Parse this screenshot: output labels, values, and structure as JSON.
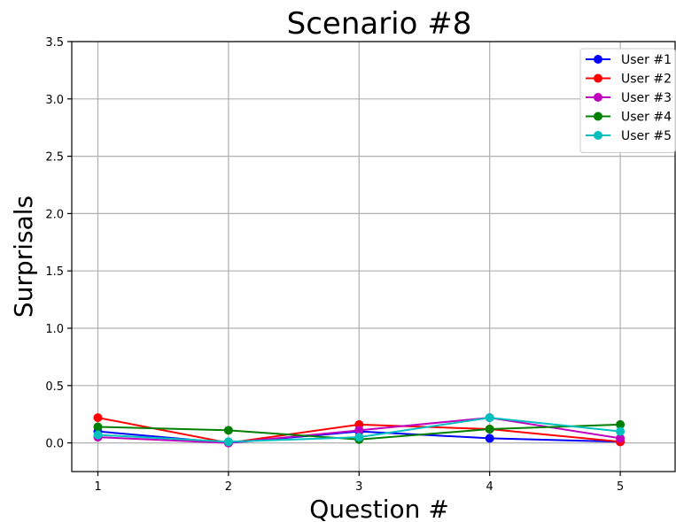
{
  "chart_data": {
    "type": "line",
    "title": "Scenario #8",
    "xlabel": "Question #",
    "ylabel": "Surprisals",
    "x": [
      1,
      2,
      3,
      4,
      5
    ],
    "x_ticks": [
      "1",
      "2",
      "3",
      "4",
      "5"
    ],
    "xlim": [
      0.8,
      5.42
    ],
    "ylim": [
      -0.25,
      3.5
    ],
    "y_ticks": [
      "0.0",
      "0.5",
      "1.0",
      "1.5",
      "2.0",
      "2.5",
      "3.0",
      "3.5"
    ],
    "grid": true,
    "legend_position": "top-right",
    "series": [
      {
        "name": "User #1",
        "color": "#0000ff",
        "values": [
          0.1,
          0.0,
          0.1,
          0.04,
          0.01
        ]
      },
      {
        "name": "User #2",
        "color": "#ff0000",
        "values": [
          0.22,
          0.0,
          0.16,
          0.12,
          0.01
        ]
      },
      {
        "name": "User #3",
        "color": "#bf00bf",
        "values": [
          0.05,
          0.0,
          0.11,
          0.22,
          0.04
        ]
      },
      {
        "name": "User #4",
        "color": "#008000",
        "values": [
          0.14,
          0.11,
          0.03,
          0.12,
          0.16
        ]
      },
      {
        "name": "User #5",
        "color": "#00bfbf",
        "values": [
          0.07,
          0.01,
          0.05,
          0.22,
          0.1
        ]
      }
    ]
  }
}
